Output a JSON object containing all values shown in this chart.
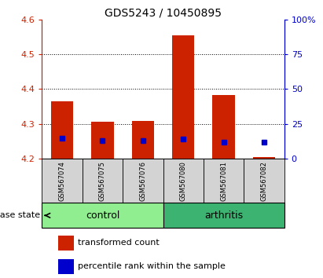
{
  "title": "GDS5243 / 10450895",
  "samples": [
    "GSM567074",
    "GSM567075",
    "GSM567076",
    "GSM567080",
    "GSM567081",
    "GSM567082"
  ],
  "groups": [
    "control",
    "control",
    "control",
    "arthritis",
    "arthritis",
    "arthritis"
  ],
  "group_labels": [
    "control",
    "arthritis"
  ],
  "bar_bottom": 4.2,
  "red_tops": [
    4.365,
    4.305,
    4.308,
    4.555,
    4.383,
    4.205
  ],
  "blue_values": [
    4.258,
    4.252,
    4.252,
    4.257,
    4.248,
    4.248
  ],
  "red_color": "#cc2200",
  "blue_color": "#0000cc",
  "left_ylim": [
    4.2,
    4.6
  ],
  "left_yticks": [
    4.2,
    4.3,
    4.4,
    4.5,
    4.6
  ],
  "right_ylim": [
    0,
    100
  ],
  "right_yticks": [
    0,
    25,
    50,
    75,
    100
  ],
  "right_yticklabels": [
    "0",
    "25",
    "50",
    "75",
    "100%"
  ],
  "left_tick_color": "#cc2200",
  "right_tick_color": "#0000cc",
  "grid_values": [
    4.3,
    4.4,
    4.5
  ],
  "xlabel_area_color": "#d3d3d3",
  "legend_red": "transformed count",
  "legend_blue": "percentile rank within the sample",
  "disease_state_label": "disease state",
  "control_indices": [
    0,
    1,
    2
  ],
  "arthritis_indices": [
    3,
    4,
    5
  ],
  "control_color": "#90EE90",
  "arthritis_color": "#3cb371"
}
